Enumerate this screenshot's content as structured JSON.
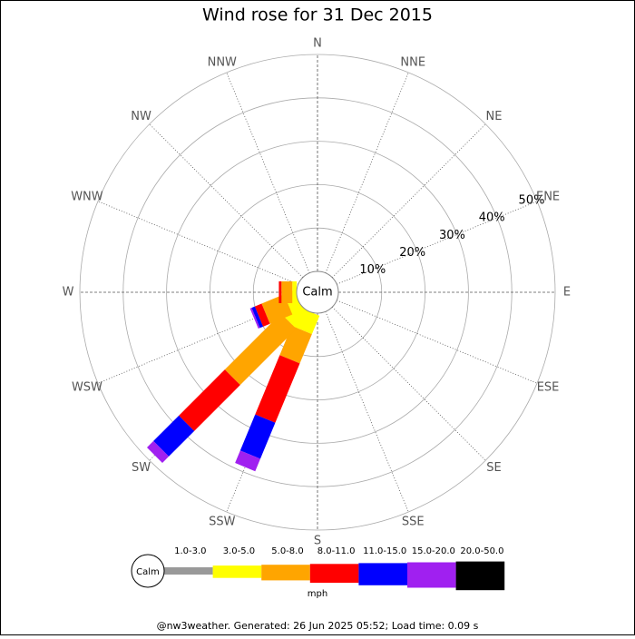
{
  "chart_data": {
    "type": "windrose",
    "title": "Wind rose for 31 Dec 2015",
    "center_label": "Calm",
    "unit_label": "mph",
    "footer": "@nw3weather. Generated: 26 Jun 2025 05:52; Load time: 0.09 s",
    "categories": [
      "N",
      "NNE",
      "NE",
      "ENE",
      "E",
      "ESE",
      "SE",
      "SSE",
      "S",
      "SSW",
      "SW",
      "WSW",
      "W",
      "WNW",
      "NW",
      "NNW"
    ],
    "rlim": [
      0,
      50
    ],
    "rticks": [
      {
        "value": 10,
        "label": "10%"
      },
      {
        "value": 20,
        "label": "20%"
      },
      {
        "value": 30,
        "label": "30%"
      },
      {
        "value": 40,
        "label": "40%"
      },
      {
        "value": 50,
        "label": "50%"
      }
    ],
    "series": [
      {
        "name": "1.0-3.0",
        "color": "#999999",
        "values": [
          0,
          0,
          0,
          0,
          0,
          0,
          0,
          0,
          0,
          0,
          0,
          0,
          0,
          0,
          0,
          0
        ]
      },
      {
        "name": "3.0-5.0",
        "color": "#ffff00",
        "values": [
          0,
          0,
          0,
          0,
          0,
          0,
          0,
          0,
          0,
          4.6,
          4.6,
          2.5,
          1,
          0,
          0,
          0
        ]
      },
      {
        "name": "5.0-8.0",
        "color": "#ffa500",
        "values": [
          0,
          0,
          0,
          0,
          0,
          0,
          0,
          0,
          0,
          7.3,
          18.3,
          5.6,
          2.5,
          0,
          0,
          0
        ]
      },
      {
        "name": "8.0-11.0",
        "color": "#ff0000",
        "values": [
          0,
          0,
          0,
          0,
          0,
          0,
          0,
          0,
          0,
          14.8,
          15,
          1.7,
          0.6,
          0,
          0,
          0
        ]
      },
      {
        "name": "11.0-15.0",
        "color": "#0000ff",
        "values": [
          0,
          0,
          0,
          0,
          0,
          0,
          0,
          0,
          0,
          9,
          8.3,
          0.8,
          0,
          0,
          0,
          0
        ]
      },
      {
        "name": "15.0-20.0",
        "color": "#a020f0",
        "values": [
          0,
          0,
          0,
          0,
          0,
          0,
          0,
          0,
          0,
          3.1,
          2.1,
          0.4,
          0,
          0,
          0,
          0
        ]
      },
      {
        "name": "20.0-50.0",
        "color": "#000000",
        "values": [
          0,
          0,
          0,
          0,
          0,
          0,
          0,
          0,
          0,
          0,
          0,
          0,
          0,
          0,
          0,
          0
        ]
      }
    ]
  }
}
